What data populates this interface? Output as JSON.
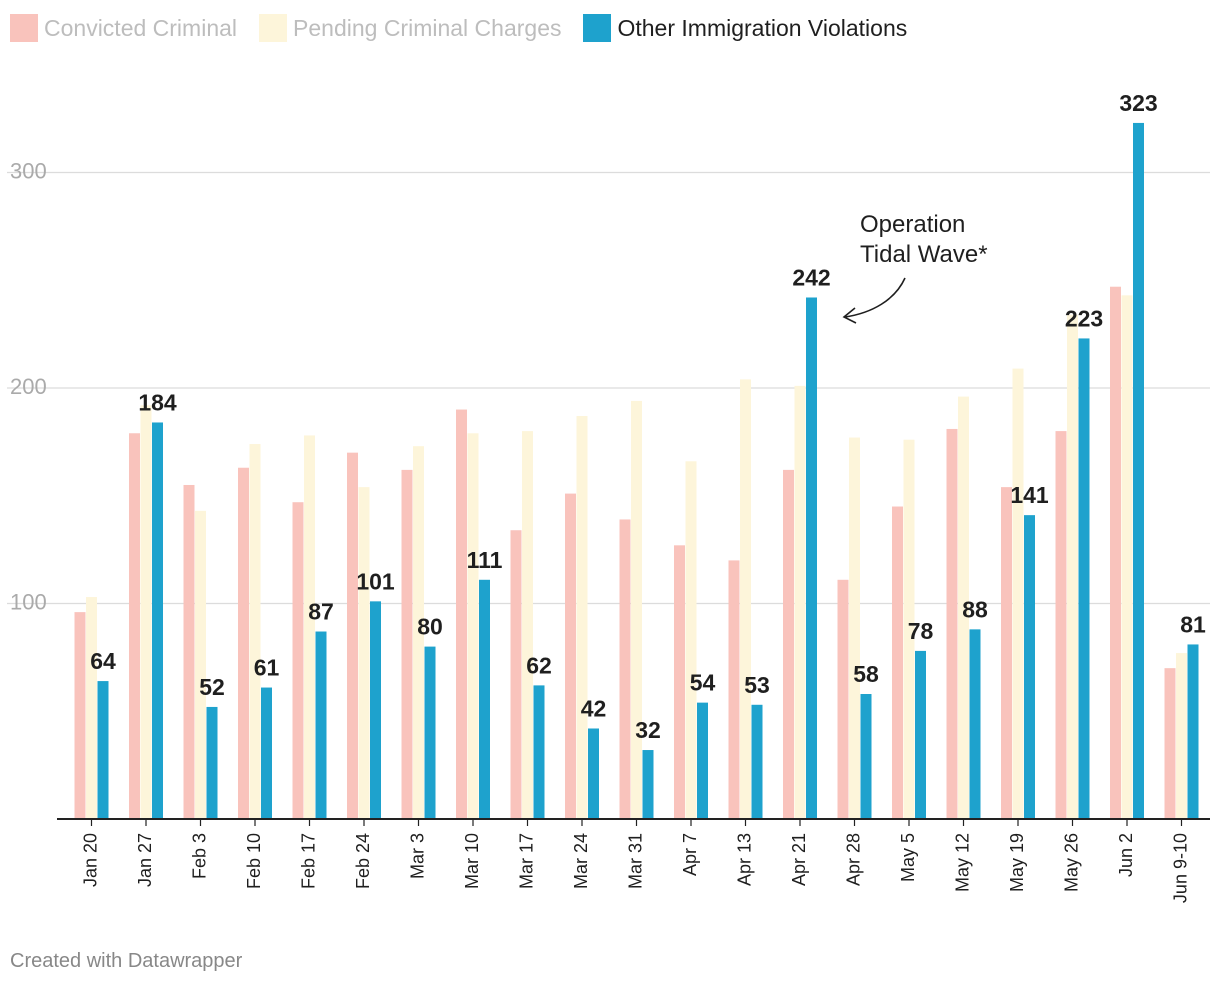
{
  "colors": {
    "convicted": "#f9c3bc",
    "pending": "#fdf5da",
    "other": "#1ea2cd",
    "grid": "#dcdcdc",
    "axis": "#222222",
    "tick_text": "#aaaaaa",
    "label_text": "#1f1f1f",
    "muted_legend_text": "#bdbdbd",
    "active_legend_text": "#1f1f1f"
  },
  "legend": [
    {
      "key": "convicted",
      "label": "Convicted Criminal",
      "active": false
    },
    {
      "key": "pending",
      "label": "Pending Criminal Charges",
      "active": false
    },
    {
      "key": "other",
      "label": "Other Immigration Violations",
      "active": true
    }
  ],
  "chart_data": {
    "type": "bar",
    "title": "",
    "xlabel": "",
    "ylabel": "",
    "ylim": [
      0,
      340
    ],
    "yticks": [
      100,
      200,
      300
    ],
    "grid": true,
    "legend_position": "top-left",
    "categories": [
      "Jan 20",
      "Jan 27",
      "Feb 3",
      "Feb 10",
      "Feb 17",
      "Feb 24",
      "Mar 3",
      "Mar 10",
      "Mar 17",
      "Mar 24",
      "Mar 31",
      "Apr 7",
      "Apr 13",
      "Apr 21",
      "Apr 28",
      "May 5",
      "May 12",
      "May 19",
      "May 26",
      "Jun 2",
      "Jun 9-10"
    ],
    "series": [
      {
        "name": "Convicted Criminal",
        "key": "convicted",
        "values": [
          96,
          179,
          155,
          163,
          147,
          170,
          162,
          190,
          134,
          151,
          139,
          127,
          120,
          162,
          111,
          145,
          181,
          154,
          180,
          247,
          70
        ]
      },
      {
        "name": "Pending Criminal Charges",
        "key": "pending",
        "values": [
          103,
          192,
          143,
          174,
          178,
          154,
          173,
          179,
          180,
          187,
          194,
          166,
          204,
          201,
          177,
          176,
          196,
          209,
          234,
          243,
          77
        ]
      },
      {
        "name": "Other Immigration Violations",
        "key": "other",
        "values": [
          64,
          184,
          52,
          61,
          87,
          101,
          80,
          111,
          62,
          42,
          32,
          54,
          53,
          242,
          58,
          78,
          88,
          141,
          223,
          323,
          81
        ],
        "labeled": true
      }
    ],
    "annotations": [
      {
        "lines": [
          "Operation",
          "Tidal Wave*"
        ],
        "target_category": "Apr 21"
      }
    ]
  },
  "footer": "Created with Datawrapper"
}
